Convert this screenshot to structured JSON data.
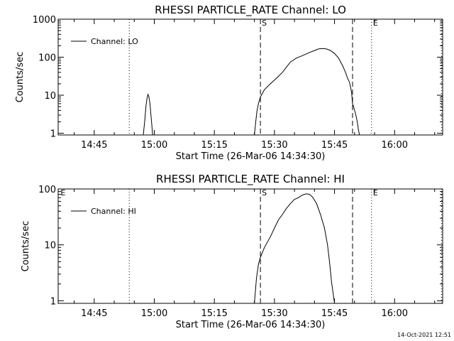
{
  "footer_timestamp": "14-Oct-2021 12:51",
  "colors": {
    "background": "#ffffff",
    "foreground": "#000000"
  },
  "chart_data": [
    {
      "type": "line",
      "title": "RHESSI PARTICLE_RATE Channel: LO",
      "xlabel": "Start Time (26-Mar-06 14:34:30)",
      "ylabel": "Counts/sec",
      "yscale": "log",
      "xlim": [
        "14:36:00",
        "16:12:00"
      ],
      "ylim": [
        0.9,
        1000
      ],
      "x_ticks": [
        "14:45",
        "15:00",
        "15:15",
        "15:30",
        "15:45",
        "16:00"
      ],
      "y_ticks": [
        "1",
        "10",
        "100",
        "1000"
      ],
      "legend": {
        "label": "Channel: LO",
        "position": "top-left"
      },
      "markers": [
        {
          "time": "15:26:30",
          "label": "S",
          "style": "dashed"
        },
        {
          "time": "15:49:30",
          "label": "",
          "style": "dashed"
        },
        {
          "time": "15:54:15",
          "label": "E",
          "style": "dotted"
        },
        {
          "time": "14:53:45",
          "label": "",
          "style": "dotted"
        },
        {
          "time": "16:11:45",
          "label": "",
          "style": "dotted"
        }
      ],
      "series": [
        {
          "name": "Channel: LO",
          "segments": [
            [
              [
                "14:57:15",
                0.9
              ],
              [
                "14:57:35",
                2.0
              ],
              [
                "14:57:55",
                5.0
              ],
              [
                "14:58:10",
                8.0
              ],
              [
                "14:58:25",
                10.5
              ],
              [
                "14:58:40",
                9.0
              ],
              [
                "14:58:55",
                6.0
              ],
              [
                "14:59:10",
                3.0
              ],
              [
                "14:59:25",
                1.5
              ],
              [
                "14:59:35",
                0.9
              ]
            ],
            [
              [
                "15:25:00",
                0.9
              ],
              [
                "15:25:20",
                2.0
              ],
              [
                "15:25:40",
                4.0
              ],
              [
                "15:26:00",
                6.0
              ],
              [
                "15:26:30",
                9.0
              ],
              [
                "15:27:30",
                14.0
              ],
              [
                "15:29:00",
                20.0
              ],
              [
                "15:30:30",
                28.0
              ],
              [
                "15:32:00",
                40.0
              ],
              [
                "15:33:00",
                55.0
              ],
              [
                "15:34:00",
                75.0
              ],
              [
                "15:35:30",
                95.0
              ],
              [
                "15:37:00",
                110.0
              ],
              [
                "15:38:30",
                130.0
              ],
              [
                "15:40:00",
                150.0
              ],
              [
                "15:41:00",
                165.0
              ],
              [
                "15:42:00",
                170.0
              ],
              [
                "15:43:00",
                165.0
              ],
              [
                "15:44:00",
                150.0
              ],
              [
                "15:45:00",
                125.0
              ],
              [
                "15:46:00",
                95.0
              ],
              [
                "15:47:00",
                60.0
              ],
              [
                "15:47:45",
                40.0
              ],
              [
                "15:48:15",
                28.0
              ],
              [
                "15:48:45",
                22.0
              ],
              [
                "15:49:15",
                12.0
              ],
              [
                "15:49:30",
                6.0
              ],
              [
                "15:49:45",
                5.0
              ],
              [
                "15:50:00",
                4.0
              ],
              [
                "15:50:20",
                3.0
              ],
              [
                "15:50:40",
                2.0
              ],
              [
                "15:51:00",
                1.2
              ],
              [
                "15:51:15",
                0.9
              ]
            ]
          ]
        }
      ]
    },
    {
      "type": "line",
      "title": "RHESSI PARTICLE_RATE Channel: HI",
      "xlabel": "Start Time (26-Mar-06 14:34:30)",
      "ylabel": "Counts/sec",
      "yscale": "log",
      "xlim": [
        "14:36:00",
        "16:12:00"
      ],
      "ylim": [
        0.9,
        100
      ],
      "x_ticks": [
        "14:45",
        "15:00",
        "15:15",
        "15:30",
        "15:45",
        "16:00"
      ],
      "y_ticks": [
        "1",
        "10",
        "100"
      ],
      "legend": {
        "label": "Channel: HI",
        "position": "top-left"
      },
      "markers": [
        {
          "time": "14:36:15",
          "label": "E",
          "style": "none"
        },
        {
          "time": "15:26:30",
          "label": "S",
          "style": "dashed"
        },
        {
          "time": "15:49:30",
          "label": "",
          "style": "dashed"
        },
        {
          "time": "15:54:15",
          "label": "E",
          "style": "dotted"
        },
        {
          "time": "14:53:45",
          "label": "",
          "style": "dotted"
        },
        {
          "time": "16:11:45",
          "label": "",
          "style": "dotted"
        }
      ],
      "series": [
        {
          "name": "Channel: HI",
          "segments": [
            [
              [
                "15:25:00",
                0.9
              ],
              [
                "15:25:30",
                2.5
              ],
              [
                "15:26:00",
                4.5
              ],
              [
                "15:26:30",
                6.0
              ],
              [
                "15:27:30",
                9.0
              ],
              [
                "15:29:00",
                14.0
              ],
              [
                "15:30:00",
                20.0
              ],
              [
                "15:31:00",
                28.0
              ],
              [
                "15:32:00",
                35.0
              ],
              [
                "15:33:00",
                45.0
              ],
              [
                "15:34:00",
                55.0
              ],
              [
                "15:35:00",
                65.0
              ],
              [
                "15:36:00",
                70.0
              ],
              [
                "15:37:00",
                78.0
              ],
              [
                "15:38:00",
                82.0
              ],
              [
                "15:38:45",
                80.0
              ],
              [
                "15:39:30",
                72.0
              ],
              [
                "15:40:30",
                55.0
              ],
              [
                "15:41:30",
                35.0
              ],
              [
                "15:42:30",
                20.0
              ],
              [
                "15:43:15",
                10.0
              ],
              [
                "15:43:45",
                5.0
              ],
              [
                "15:44:15",
                2.2
              ],
              [
                "15:44:45",
                1.2
              ],
              [
                "15:45:00",
                0.9
              ]
            ]
          ]
        }
      ]
    }
  ]
}
